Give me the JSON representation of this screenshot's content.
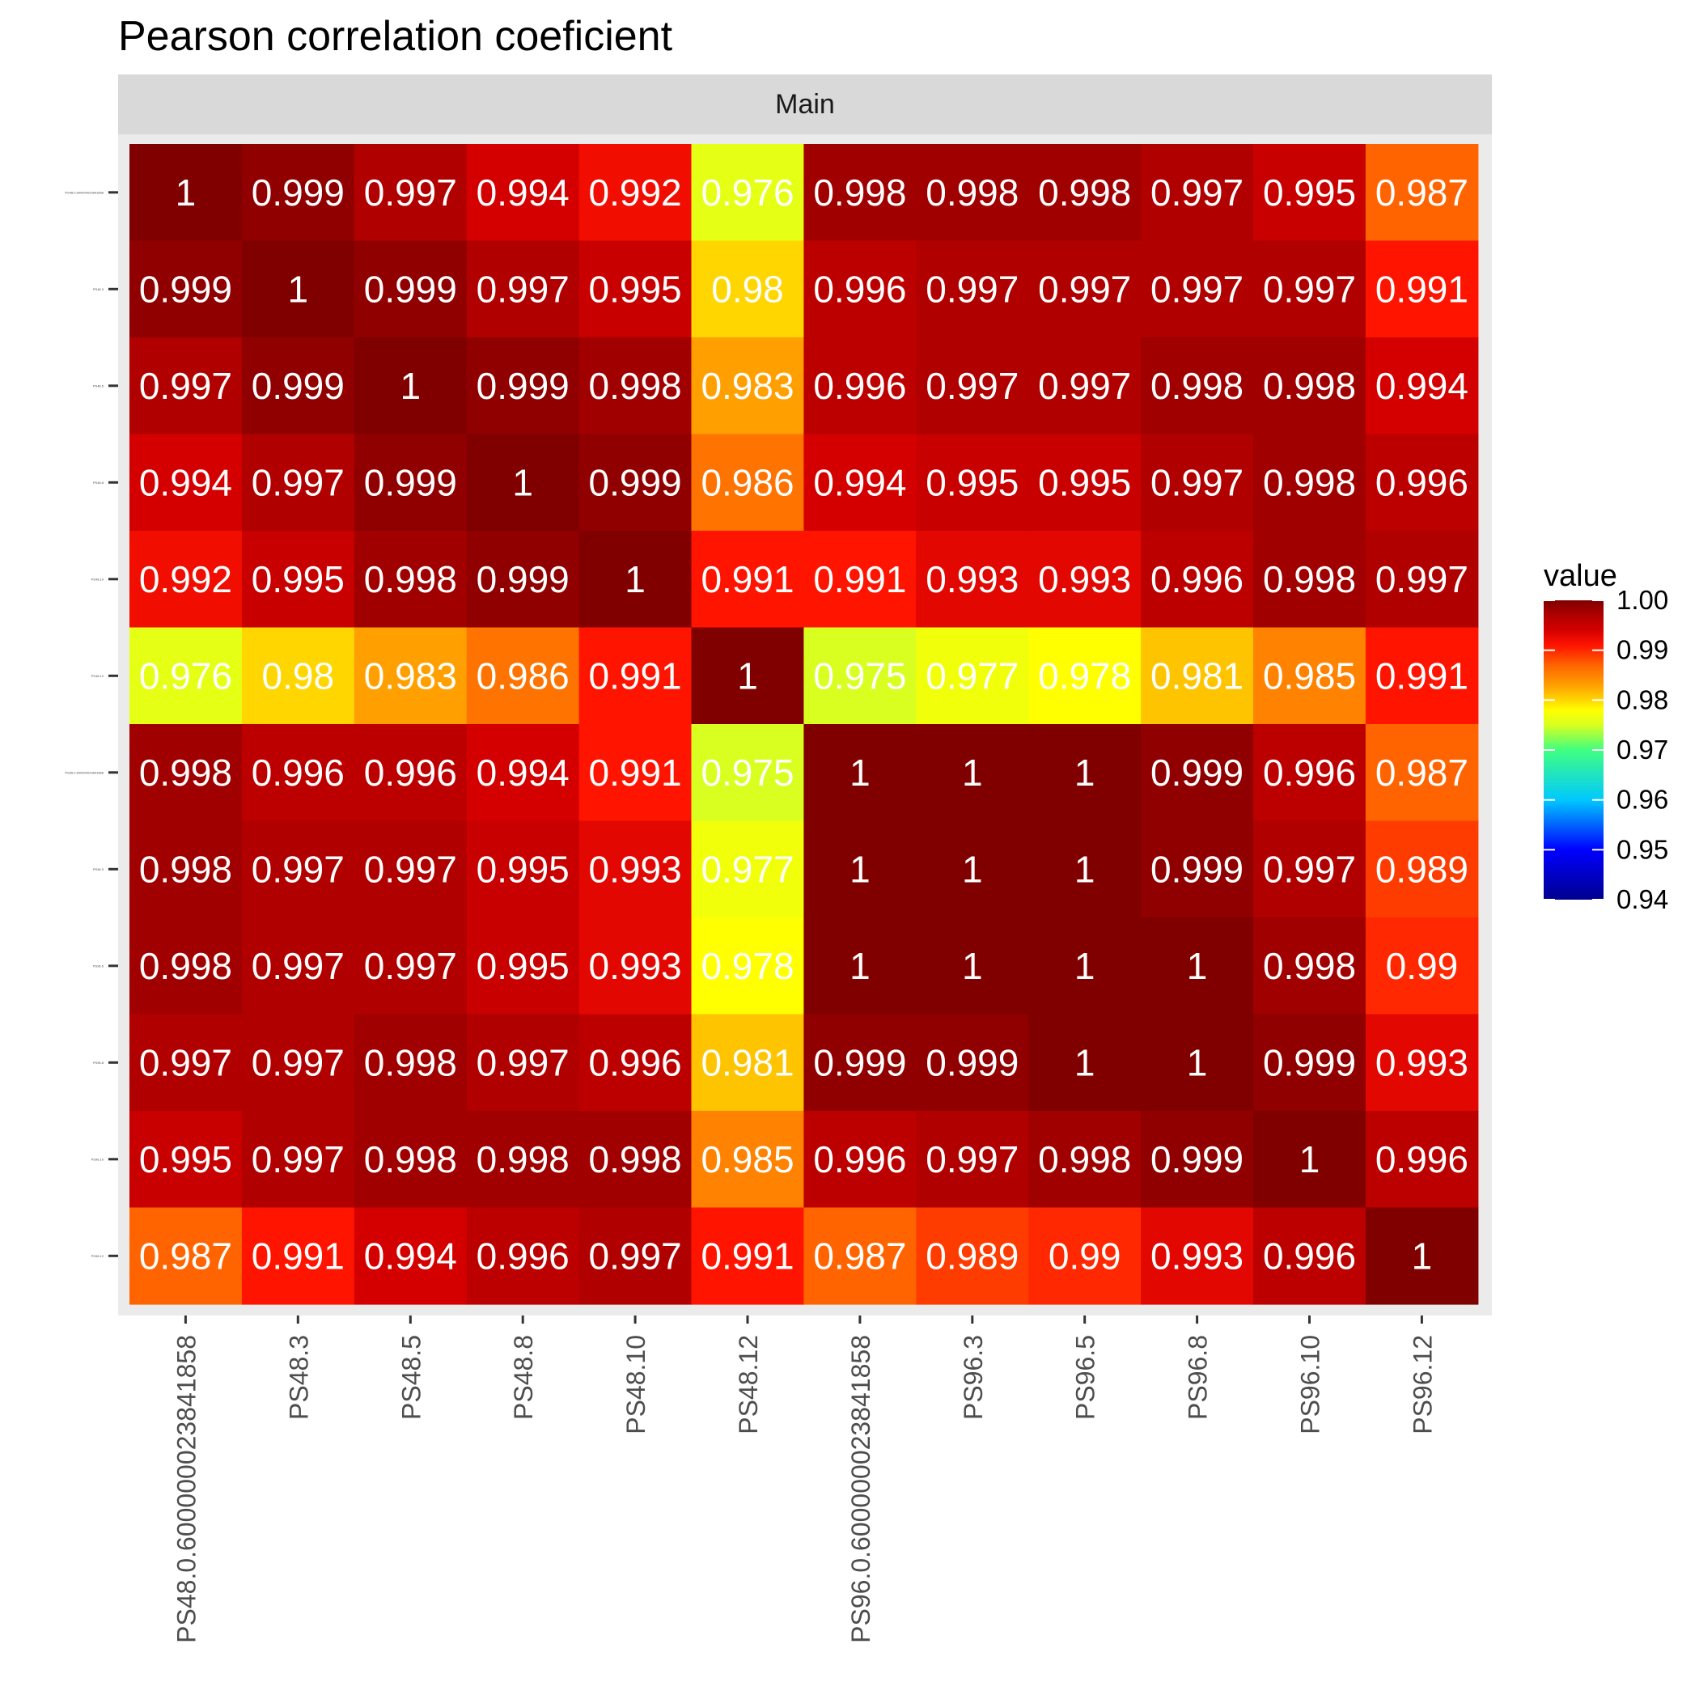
{
  "chart_data": {
    "type": "heatmap",
    "title": "Pearson correlation coeficient",
    "facet": "Main",
    "columns": [
      "PS48.0.600000023841858",
      "PS48.3",
      "PS48.5",
      "PS48.8",
      "PS48.10",
      "PS48.12",
      "PS96.0.600000023841858",
      "PS96.3",
      "PS96.5",
      "PS96.8",
      "PS96.10",
      "PS96.12"
    ],
    "rows": [
      "PS48.0.600000023841858",
      "PS48.3",
      "PS48.5",
      "PS48.8",
      "PS48.10",
      "PS48.12",
      "PS96.0.600000023841858",
      "PS96.3",
      "PS96.5",
      "PS96.8",
      "PS96.10",
      "PS96.12"
    ],
    "values": [
      [
        1,
        0.999,
        0.997,
        0.994,
        0.992,
        0.976,
        0.998,
        0.998,
        0.998,
        0.997,
        0.995,
        0.987
      ],
      [
        0.999,
        1,
        0.999,
        0.997,
        0.995,
        0.98,
        0.996,
        0.997,
        0.997,
        0.997,
        0.997,
        0.991
      ],
      [
        0.997,
        0.999,
        1,
        0.999,
        0.998,
        0.983,
        0.996,
        0.997,
        0.997,
        0.998,
        0.998,
        0.994
      ],
      [
        0.994,
        0.997,
        0.999,
        1,
        0.999,
        0.986,
        0.994,
        0.995,
        0.995,
        0.997,
        0.998,
        0.996
      ],
      [
        0.992,
        0.995,
        0.998,
        0.999,
        1,
        0.991,
        0.991,
        0.993,
        0.993,
        0.996,
        0.998,
        0.997
      ],
      [
        0.976,
        0.98,
        0.983,
        0.986,
        0.991,
        1,
        0.975,
        0.977,
        0.978,
        0.981,
        0.985,
        0.991
      ],
      [
        0.998,
        0.996,
        0.996,
        0.994,
        0.991,
        0.975,
        1,
        1,
        1,
        0.999,
        0.996,
        0.987
      ],
      [
        0.998,
        0.997,
        0.997,
        0.995,
        0.993,
        0.977,
        1,
        1,
        1,
        0.999,
        0.997,
        0.989
      ],
      [
        0.998,
        0.997,
        0.997,
        0.995,
        0.993,
        0.978,
        1,
        1,
        1,
        1,
        0.998,
        0.99
      ],
      [
        0.997,
        0.997,
        0.998,
        0.997,
        0.996,
        0.981,
        0.999,
        0.999,
        1,
        1,
        0.999,
        0.993
      ],
      [
        0.995,
        0.997,
        0.998,
        0.998,
        0.998,
        0.985,
        0.996,
        0.997,
        0.998,
        0.999,
        1,
        0.996
      ],
      [
        0.987,
        0.991,
        0.994,
        0.996,
        0.997,
        0.991,
        0.987,
        0.989,
        0.99,
        0.993,
        0.996,
        1
      ]
    ],
    "labels": [
      [
        "1",
        "0.999",
        "0.997",
        "0.994",
        "0.992",
        "0.976",
        "0.998",
        "0.998",
        "0.998",
        "0.997",
        "0.995",
        "0.987"
      ],
      [
        "0.999",
        "1",
        "0.999",
        "0.997",
        "0.995",
        "0.98",
        "0.996",
        "0.997",
        "0.997",
        "0.997",
        "0.997",
        "0.991"
      ],
      [
        "0.997",
        "0.999",
        "1",
        "0.999",
        "0.998",
        "0.983",
        "0.996",
        "0.997",
        "0.997",
        "0.998",
        "0.998",
        "0.994"
      ],
      [
        "0.994",
        "0.997",
        "0.999",
        "1",
        "0.999",
        "0.986",
        "0.994",
        "0.995",
        "0.995",
        "0.997",
        "0.998",
        "0.996"
      ],
      [
        "0.992",
        "0.995",
        "0.998",
        "0.999",
        "1",
        "0.991",
        "0.991",
        "0.993",
        "0.993",
        "0.996",
        "0.998",
        "0.997"
      ],
      [
        "0.976",
        "0.98",
        "0.983",
        "0.986",
        "0.991",
        "1",
        "0.975",
        "0.977",
        "0.978",
        "0.981",
        "0.985",
        "0.991"
      ],
      [
        "0.998",
        "0.996",
        "0.996",
        "0.994",
        "0.991",
        "0.975",
        "1",
        "1",
        "1",
        "0.999",
        "0.996",
        "0.987"
      ],
      [
        "0.998",
        "0.997",
        "0.997",
        "0.995",
        "0.993",
        "0.977",
        "1",
        "1",
        "1",
        "0.999",
        "0.997",
        "0.989"
      ],
      [
        "0.998",
        "0.997",
        "0.997",
        "0.995",
        "0.993",
        "0.978",
        "1",
        "1",
        "1",
        "1",
        "0.998",
        "0.99"
      ],
      [
        "0.997",
        "0.997",
        "0.998",
        "0.997",
        "0.996",
        "0.981",
        "0.999",
        "0.999",
        "1",
        "1",
        "0.999",
        "0.993"
      ],
      [
        "0.995",
        "0.997",
        "0.998",
        "0.998",
        "0.998",
        "0.985",
        "0.996",
        "0.997",
        "0.998",
        "0.999",
        "1",
        "0.996"
      ],
      [
        "0.987",
        "0.991",
        "0.994",
        "0.996",
        "0.997",
        "0.991",
        "0.987",
        "0.989",
        "0.99",
        "0.993",
        "0.996",
        "1"
      ]
    ],
    "legend": {
      "title": "value",
      "placement": "right",
      "range": [
        0.94,
        1.0
      ],
      "ticks": [
        "1.00",
        "0.99",
        "0.98",
        "0.97",
        "0.96",
        "0.95",
        "0.94"
      ],
      "tick_values": [
        1.0,
        0.99,
        0.98,
        0.97,
        0.96,
        0.95,
        0.94
      ]
    },
    "colorscale": [
      {
        "v": 0.94,
        "c": "#00008f"
      },
      {
        "v": 0.95,
        "c": "#0000ff"
      },
      {
        "v": 0.96,
        "c": "#00c8ff"
      },
      {
        "v": 0.97,
        "c": "#40ff80"
      },
      {
        "v": 0.975,
        "c": "#d8ff20"
      },
      {
        "v": 0.978,
        "c": "#ffff00"
      },
      {
        "v": 0.98,
        "c": "#ffd600"
      },
      {
        "v": 0.983,
        "c": "#ffa000"
      },
      {
        "v": 0.987,
        "c": "#ff6400"
      },
      {
        "v": 0.991,
        "c": "#ff1400"
      },
      {
        "v": 0.994,
        "c": "#d40000"
      },
      {
        "v": 0.997,
        "c": "#b00000"
      },
      {
        "v": 0.999,
        "c": "#900000"
      },
      {
        "v": 1.0,
        "c": "#800000"
      }
    ],
    "panel_background": "#ebebeb",
    "strip_background": "#d9d9d9"
  }
}
